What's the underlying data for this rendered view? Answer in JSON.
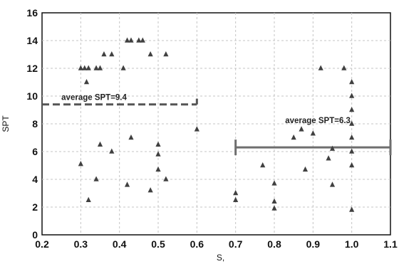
{
  "chart_data": {
    "type": "scatter",
    "xlabel": "S,",
    "ylabel": "SPT",
    "xlim": [
      0.2,
      1.1
    ],
    "ylim": [
      0,
      16
    ],
    "xticks": [
      "0.2",
      "0.3",
      "0.4",
      "0.5",
      "0.6",
      "0.7",
      "0.8",
      "0.9",
      "1.0",
      "1.1"
    ],
    "yticks": [
      "0",
      "2",
      "4",
      "6",
      "8",
      "10",
      "12",
      "14",
      "16"
    ],
    "grid": true,
    "marker": "triangle",
    "colors": {
      "marker": "#404040",
      "left_bracket": "#555555",
      "right_bracket": "#6e6e6e",
      "grid": "#c4c4c4"
    },
    "series": [
      {
        "values": [
          [
            0.3,
            12.0
          ],
          [
            0.31,
            12.0
          ],
          [
            0.315,
            11.0
          ],
          [
            0.32,
            12.0
          ],
          [
            0.34,
            12.0
          ],
          [
            0.35,
            12.0
          ],
          [
            0.36,
            13.0
          ],
          [
            0.38,
            13.0
          ],
          [
            0.41,
            12.0
          ],
          [
            0.42,
            14.0
          ],
          [
            0.43,
            14.0
          ],
          [
            0.45,
            14.0
          ],
          [
            0.46,
            14.0
          ],
          [
            0.48,
            13.0
          ],
          [
            0.52,
            13.0
          ],
          [
            0.3,
            5.1
          ],
          [
            0.32,
            2.5
          ],
          [
            0.34,
            4.0
          ],
          [
            0.35,
            6.5
          ],
          [
            0.38,
            6.0
          ],
          [
            0.42,
            3.6
          ],
          [
            0.43,
            7.0
          ],
          [
            0.48,
            3.2
          ],
          [
            0.5,
            6.5
          ],
          [
            0.5,
            5.8
          ],
          [
            0.5,
            4.7
          ],
          [
            0.52,
            4.0
          ],
          [
            0.6,
            7.6
          ],
          [
            0.7,
            3.0
          ],
          [
            0.7,
            2.5
          ],
          [
            0.77,
            5.0
          ],
          [
            0.8,
            3.7
          ],
          [
            0.8,
            2.4
          ],
          [
            0.8,
            1.9
          ],
          [
            0.85,
            7.0
          ],
          [
            0.87,
            7.6
          ],
          [
            0.88,
            4.7
          ],
          [
            0.9,
            7.3
          ],
          [
            0.92,
            12.0
          ],
          [
            0.94,
            5.5
          ],
          [
            0.95,
            6.2
          ],
          [
            0.95,
            3.6
          ],
          [
            0.98,
            12.0
          ],
          [
            1.0,
            11.0
          ],
          [
            1.0,
            10.0
          ],
          [
            1.0,
            9.0
          ],
          [
            1.0,
            8.0
          ],
          [
            1.0,
            7.0
          ],
          [
            1.0,
            6.0
          ],
          [
            1.0,
            5.0
          ],
          [
            1.0,
            1.8
          ]
        ]
      }
    ],
    "annotations": [
      {
        "text": "average SPT=9.4",
        "value": 9.4,
        "x_range": [
          0.2,
          0.6
        ],
        "style": "dashed"
      },
      {
        "text": "average SPT=6.3",
        "value": 6.3,
        "x_range": [
          0.7,
          1.1
        ],
        "style": "solid"
      }
    ]
  }
}
